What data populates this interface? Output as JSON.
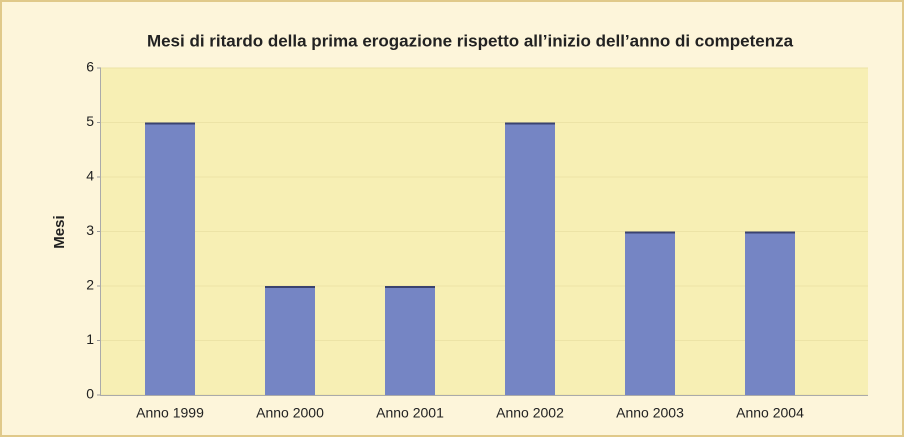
{
  "chart_data": {
    "type": "bar",
    "title": "Mesi di ritardo della prima erogazione rispetto all’inizio dell’anno di competenza",
    "y_label": "Mesi",
    "categories": [
      "Anno 1999",
      "Anno 2000",
      "Anno 2001",
      "Anno 2002",
      "Anno 2003",
      "Anno 2004"
    ],
    "values": [
      5,
      2,
      2,
      5,
      3,
      3
    ],
    "color": "#7585c4",
    "ylim": [
      0,
      6
    ],
    "yticks": [
      0,
      1,
      2,
      3,
      4,
      5,
      6
    ],
    "grid": true
  }
}
